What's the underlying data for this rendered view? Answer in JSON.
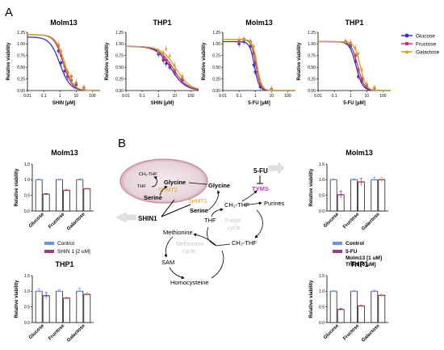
{
  "panels": {
    "a": "A",
    "b": "B"
  },
  "colors": {
    "glucose": "#3333cc",
    "fructose": "#cc3366",
    "galactose": "#c9a227",
    "control": "#6b93e8",
    "treat": "#a33a7a",
    "err_glc": "#3333cc",
    "err_fru": "#cc3366",
    "err_gal": "#c9a227"
  },
  "curve_legend": [
    "Glucose",
    "Fructose",
    "Galactose"
  ],
  "curves": [
    {
      "title": "Molm13",
      "xlabel": "SHIN [µM]",
      "ylabel": "Relative viability",
      "xmin": 0.01,
      "xmax": 300,
      "ymax": 1.25,
      "yticks": [
        "0.00",
        "0.25",
        "0.50",
        "0.75",
        "1.00",
        "1.25"
      ],
      "xticks": [
        "0.01",
        "0.1",
        "1",
        "10",
        "100"
      ],
      "series": [
        {
          "name": "Glucose",
          "top": 1.15,
          "ic50": 1.0,
          "hill": 1.4,
          "pts": [
            [
              0.8,
              0.85
            ],
            [
              1.2,
              0.6
            ],
            [
              2,
              0.42
            ],
            [
              3,
              0.3
            ],
            [
              5,
              0.22
            ],
            [
              10,
              0.12
            ],
            [
              30,
              0.05
            ]
          ]
        },
        {
          "name": "Fructose",
          "top": 1.2,
          "ic50": 1.6,
          "hill": 1.6,
          "pts": [
            [
              0.8,
              0.95
            ],
            [
              1.2,
              0.75
            ],
            [
              2,
              0.52
            ],
            [
              3,
              0.38
            ],
            [
              5,
              0.3
            ],
            [
              10,
              0.16
            ],
            [
              30,
              0.06
            ]
          ]
        },
        {
          "name": "Galactose",
          "top": 1.2,
          "ic50": 1.9,
          "hill": 1.6,
          "pts": [
            [
              0.8,
              1.0
            ],
            [
              1.2,
              0.85
            ],
            [
              2,
              0.58
            ],
            [
              3,
              0.42
            ],
            [
              5,
              0.3
            ],
            [
              10,
              0.18
            ],
            [
              30,
              0.06
            ]
          ]
        }
      ]
    },
    {
      "title": "THP1",
      "xlabel": "SHIN [µM]",
      "ylabel": "Relative viability",
      "xmin": 0.01,
      "xmax": 300,
      "ymax": 1.25,
      "yticks": [
        "0.00",
        "0.25",
        "0.50",
        "0.75",
        "1.00",
        "1.25"
      ],
      "xticks": [
        "0.01",
        "0.1",
        "1",
        "10",
        "100"
      ],
      "series": [
        {
          "name": "Glucose",
          "top": 0.95,
          "ic50": 6,
          "hill": 1.0,
          "pts": [
            [
              1,
              0.78
            ],
            [
              2,
              0.65
            ],
            [
              3,
              0.58
            ],
            [
              5,
              0.5
            ],
            [
              10,
              0.38
            ],
            [
              30,
              0.22
            ]
          ]
        },
        {
          "name": "Fructose",
          "top": 0.95,
          "ic50": 8,
          "hill": 1.0,
          "pts": [
            [
              1,
              0.82
            ],
            [
              2,
              0.7
            ],
            [
              3,
              0.65
            ],
            [
              5,
              0.55
            ],
            [
              10,
              0.42
            ],
            [
              30,
              0.26
            ]
          ]
        },
        {
          "name": "Galactose",
          "top": 0.95,
          "ic50": 12,
          "hill": 1.0,
          "pts": [
            [
              1,
              0.85
            ],
            [
              2,
              0.82
            ],
            [
              3,
              0.9
            ],
            [
              5,
              0.75
            ],
            [
              10,
              0.55
            ],
            [
              30,
              0.32
            ]
          ]
        }
      ]
    },
    {
      "title": "Molm13",
      "xlabel": "5-FU [µM]",
      "ylabel": "Relative viability",
      "xmin": 0.01,
      "xmax": 300,
      "ymax": 1.25,
      "yticks": [
        "0.00",
        "0.25",
        "0.50",
        "0.75",
        "1.00",
        "1.25"
      ],
      "xticks": [
        "0.01",
        "0.1",
        "1",
        "10",
        "100"
      ],
      "series": [
        {
          "name": "Glucose",
          "top": 1.05,
          "ic50": 0.9,
          "hill": 3.0,
          "pts": [
            [
              0.1,
              1.0
            ],
            [
              0.2,
              1.05
            ],
            [
              0.5,
              0.95
            ],
            [
              0.8,
              0.55
            ],
            [
              1,
              0.4
            ],
            [
              2,
              0.08
            ],
            [
              10,
              0.02
            ]
          ]
        },
        {
          "name": "Fructose",
          "top": 1.1,
          "ic50": 1.1,
          "hill": 3.0,
          "pts": [
            [
              0.1,
              1.05
            ],
            [
              0.2,
              1.1
            ],
            [
              0.5,
              1.05
            ],
            [
              0.8,
              0.8
            ],
            [
              1,
              0.6
            ],
            [
              2,
              0.15
            ],
            [
              10,
              0.03
            ]
          ]
        },
        {
          "name": "Galactose",
          "top": 1.1,
          "ic50": 1.3,
          "hill": 3.0,
          "pts": [
            [
              0.1,
              1.1
            ],
            [
              0.2,
              1.1
            ],
            [
              0.5,
              1.05
            ],
            [
              0.8,
              0.95
            ],
            [
              1,
              0.75
            ],
            [
              2,
              0.2
            ],
            [
              10,
              0.03
            ]
          ]
        }
      ]
    },
    {
      "title": "THP1",
      "xlabel": "5-FU [µM]",
      "ylabel": "Relative viability",
      "xmin": 0.01,
      "xmax": 300,
      "ymax": 1.25,
      "yticks": [
        "0.00",
        "0.25",
        "0.50",
        "0.75",
        "1.00",
        "1.25"
      ],
      "xticks": [
        "0.01",
        "0.1",
        "1",
        "10",
        "100"
      ],
      "series": [
        {
          "name": "Glucose",
          "top": 1.05,
          "ic50": 2.2,
          "hill": 2.2,
          "pts": [
            [
              0.5,
              1.05
            ],
            [
              1,
              0.95
            ],
            [
              2,
              0.62
            ],
            [
              3,
              0.3
            ],
            [
              5,
              0.2
            ],
            [
              10,
              0.08
            ],
            [
              30,
              0.05
            ]
          ]
        },
        {
          "name": "Fructose",
          "top": 1.05,
          "ic50": 2.8,
          "hill": 2.2,
          "pts": [
            [
              0.5,
              1.05
            ],
            [
              1,
              1.0
            ],
            [
              2,
              0.75
            ],
            [
              3,
              0.45
            ],
            [
              5,
              0.25
            ],
            [
              10,
              0.1
            ],
            [
              30,
              0.05
            ]
          ]
        },
        {
          "name": "Galactose",
          "top": 1.05,
          "ic50": 4.0,
          "hill": 2.4,
          "pts": [
            [
              0.5,
              1.05
            ],
            [
              1,
              1.05
            ],
            [
              2,
              0.92
            ],
            [
              3,
              0.8
            ],
            [
              5,
              0.45
            ],
            [
              10,
              0.15
            ],
            [
              30,
              0.06
            ]
          ]
        }
      ]
    }
  ],
  "bars": [
    {
      "title": "Molm13",
      "ylabel": "Relative viability",
      "categories": [
        "Glucose",
        "Fructose",
        "Galactose"
      ],
      "ymax": 1.5,
      "yticks": [
        "0.0",
        "0.5",
        "1.0",
        "1.5"
      ],
      "control": [
        1.0,
        1.0,
        1.0
      ],
      "treat": [
        0.54,
        0.66,
        0.71
      ],
      "control_err": [
        0.02,
        0.02,
        0.03
      ],
      "treat_err": [
        0.02,
        0.02,
        0.02
      ],
      "treat_err_kind": [
        "glc",
        "fru",
        "gal"
      ]
    },
    {
      "title": "Molm13",
      "ylabel": "Relative viability",
      "categories": [
        "Glucose",
        "Fructose",
        "Galactose"
      ],
      "ymax": 1.5,
      "yticks": [
        "0.0",
        "0.5",
        "1.0",
        "1.5"
      ],
      "control": [
        1.0,
        1.0,
        1.0
      ],
      "treat": [
        0.52,
        0.93,
        1.0
      ],
      "control_err": [
        0.02,
        0.03,
        0.08
      ],
      "treat_err": [
        0.12,
        0.12,
        0.08
      ],
      "treat_err_kind": [
        "glc",
        "fru",
        "gal"
      ]
    },
    {
      "title": "THP1",
      "ylabel": "Relative viability",
      "categories": [
        "Glucose",
        "Fructose",
        "Galactose"
      ],
      "ymax": 1.5,
      "yticks": [
        "0.0",
        "0.5",
        "1.0",
        "1.5"
      ],
      "control": [
        1.0,
        1.0,
        1.0
      ],
      "treat": [
        0.86,
        0.78,
        0.9
      ],
      "control_err": [
        0.08,
        0.05,
        0.1
      ],
      "treat_err": [
        0.1,
        0.02,
        0.05
      ],
      "treat_err_kind": [
        "glc",
        "fru",
        "gal"
      ]
    },
    {
      "title": "THP1",
      "ylabel": "Relative viability",
      "categories": [
        "Glucose",
        "Fructose",
        "Galactose"
      ],
      "ymax": 1.5,
      "yticks": [
        "0.0",
        "0.5",
        "1.0",
        "1.5"
      ],
      "control": [
        1.0,
        1.0,
        1.0
      ],
      "treat": [
        0.42,
        0.53,
        0.87
      ],
      "control_err": [
        0.02,
        0.02,
        0.04
      ],
      "treat_err": [
        0.03,
        0.02,
        0.04
      ],
      "treat_err_kind": [
        "glc",
        "fru",
        "gal"
      ]
    }
  ],
  "legend_shin": {
    "control": "Control",
    "treat": "SHIN 1 [2 uM]"
  },
  "legend_fu": {
    "control": "Control",
    "treat": "5-FU",
    "note1": "Molm13 [1 uM]",
    "note2": "THP1 [5 uM]"
  },
  "pathway": {
    "ch2thf_top": "CH₂-THF",
    "thf_left": "THF",
    "glycine_in": "Glycine",
    "shmt2": "SHMT2",
    "serine_in": "Serine",
    "glycine_out": "Glycine",
    "shmt1": "SHMT1",
    "serine_out": "Serine",
    "shin1": "SHIN1",
    "fu": "5-FU",
    "tyms": "TYMS",
    "ch2thf_mid": "CH₂-THF",
    "purines": "Purines",
    "thf": "THF",
    "folate1": "Folate",
    "folate2": "cycle",
    "ch3thf": "CH₃-THF",
    "methionine": "Methionine",
    "meth1": "Methionine",
    "meth2": "cycle",
    "sam": "SAM",
    "homocysteine": "Homocysteine"
  }
}
